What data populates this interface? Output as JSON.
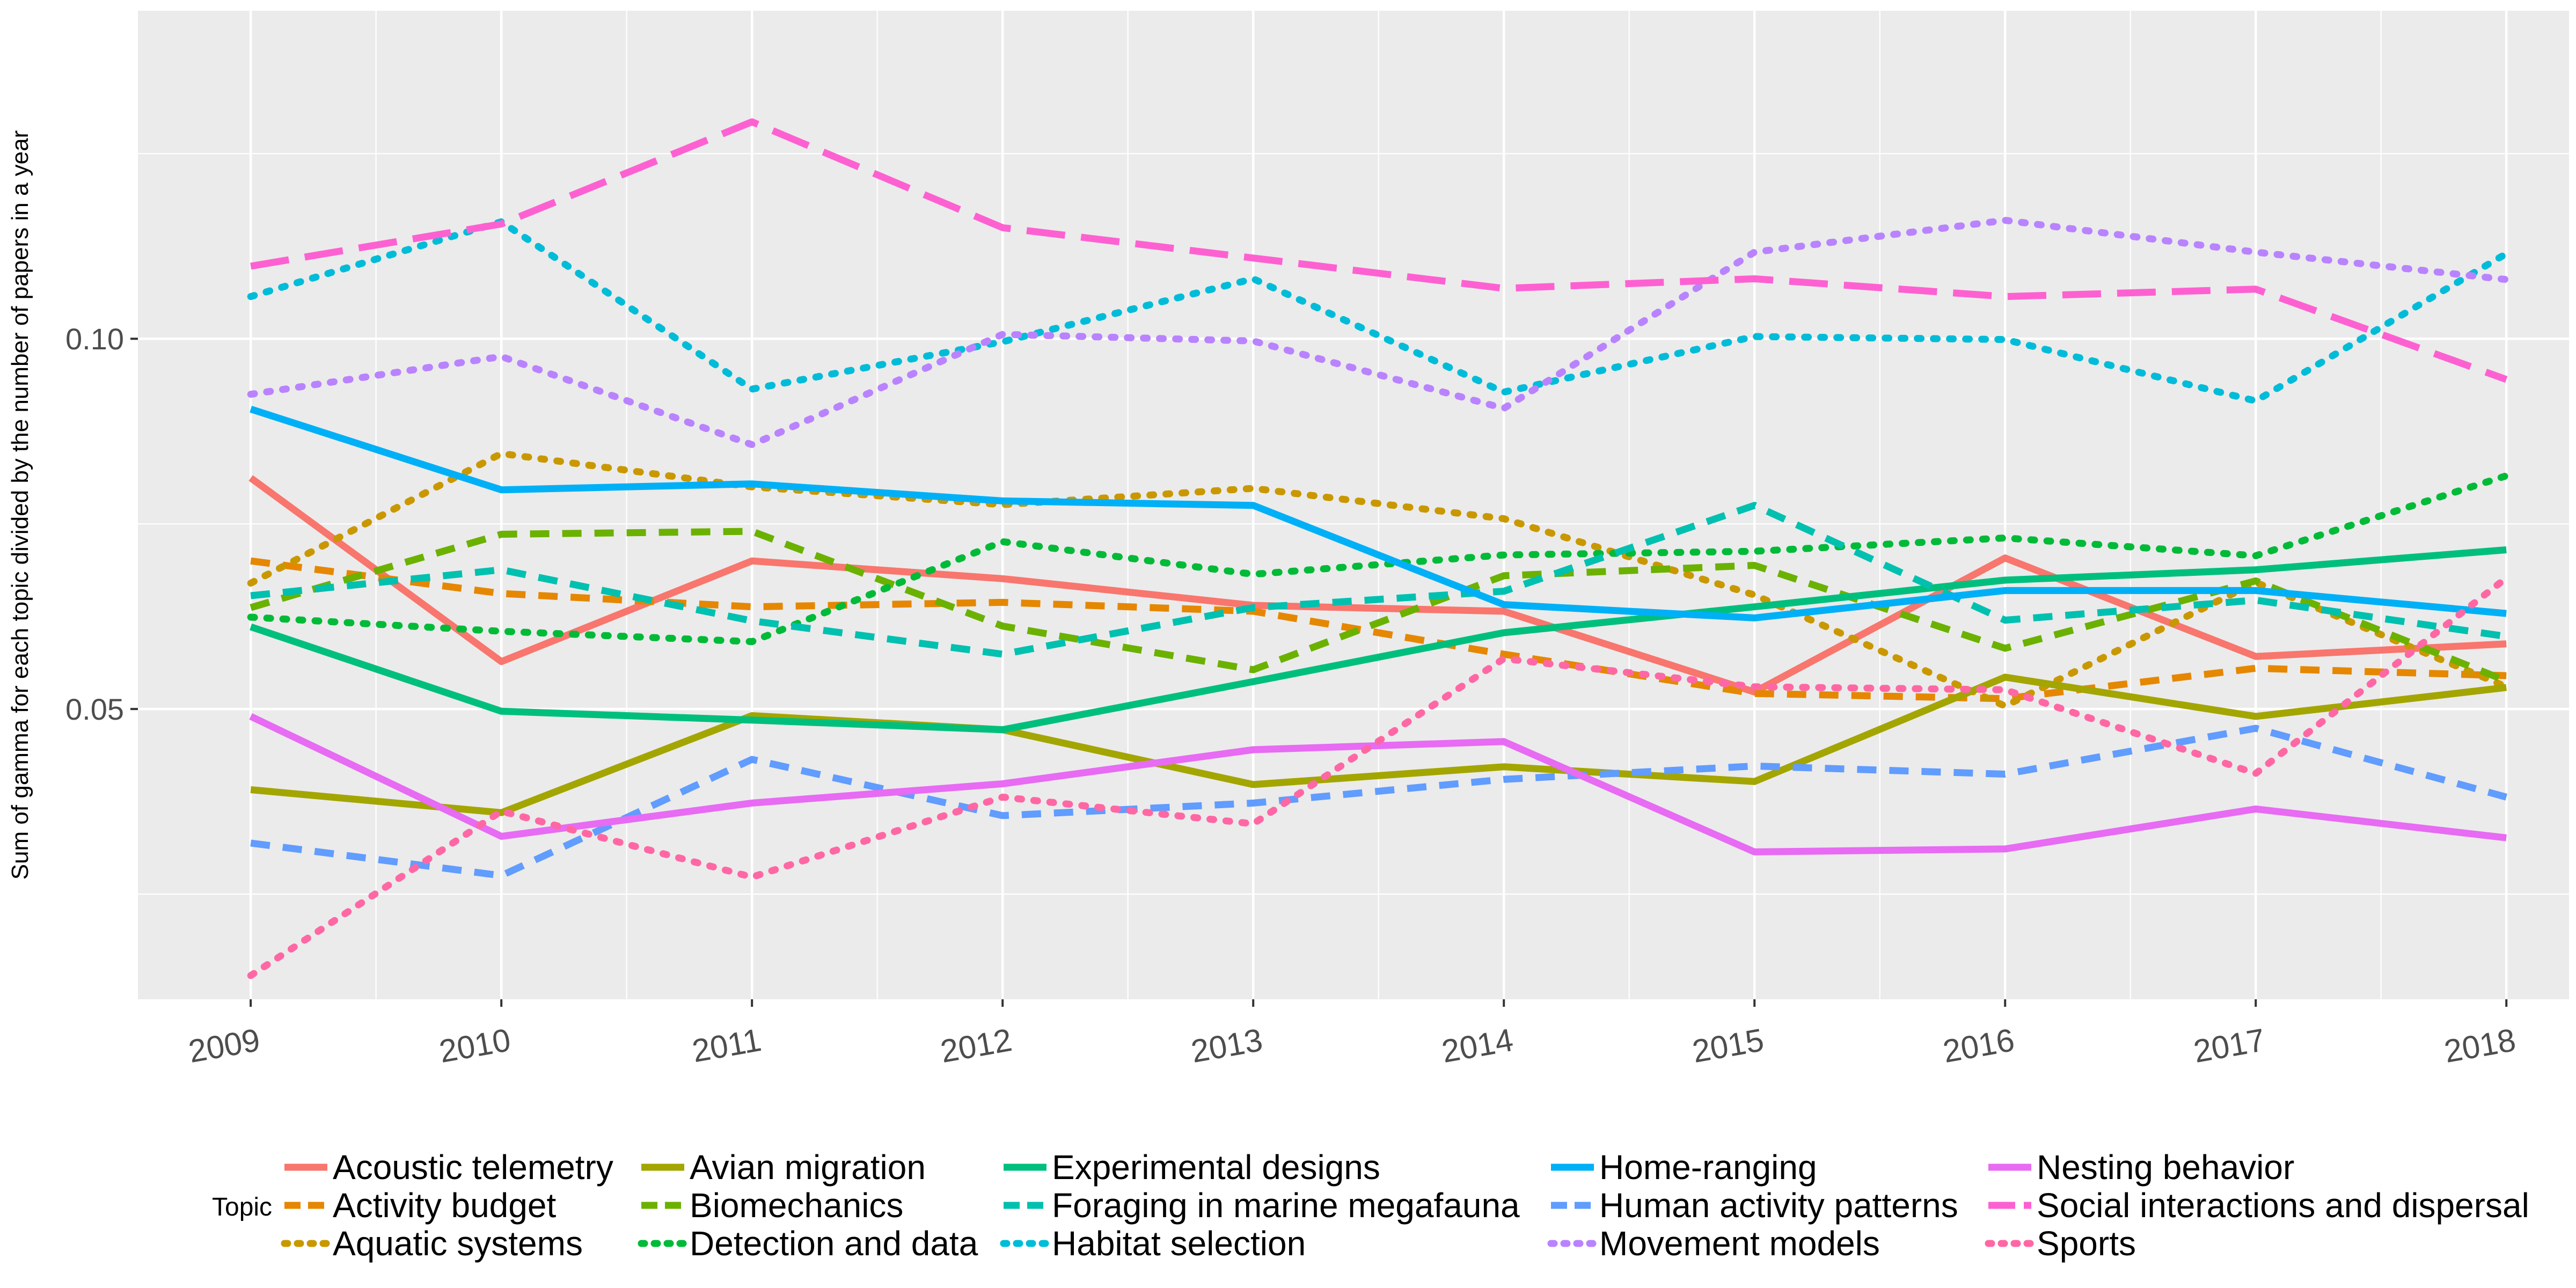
{
  "chart_data": {
    "type": "line",
    "title": "",
    "xlabel": "",
    "ylabel": "Sum of gamma for each topic divided by the number of papers in a year",
    "x": [
      2009,
      2010,
      2011,
      2012,
      2013,
      2014,
      2015,
      2016,
      2017,
      2018
    ],
    "xlim": [
      2008.55,
      2018.25
    ],
    "ylim": [
      0.0108,
      0.1443
    ],
    "y_ticks": [
      0.05,
      0.1
    ],
    "y_tick_labels": [
      "0.05",
      "0.10"
    ],
    "grid": true,
    "legend_title": "Topic",
    "legend_position": "bottom",
    "series": [
      {
        "name": "Acoustic telemetry",
        "color": "#F8766D",
        "dash": "solid",
        "values": [
          0.0812,
          0.0564,
          0.07,
          0.0676,
          0.064,
          0.0632,
          0.0523,
          0.0704,
          0.0571,
          0.0588
        ]
      },
      {
        "name": "Activity budget",
        "color": "#E58700",
        "dash": "dashed",
        "values": [
          0.07,
          0.0656,
          0.0638,
          0.0644,
          0.0632,
          0.0574,
          0.0521,
          0.0514,
          0.0555,
          0.0545
        ]
      },
      {
        "name": "Aquatic systems",
        "color": "#C99800",
        "dash": "dotted",
        "values": [
          0.067,
          0.0845,
          0.08,
          0.0776,
          0.0798,
          0.0757,
          0.0654,
          0.0504,
          0.0671,
          0.053
        ]
      },
      {
        "name": "Avian migration",
        "color": "#A3A500",
        "dash": "solid",
        "values": [
          0.0391,
          0.036,
          0.0491,
          0.0472,
          0.0398,
          0.0422,
          0.0402,
          0.0543,
          0.049,
          0.0529
        ]
      },
      {
        "name": "Biomechanics",
        "color": "#6BB100",
        "dash": "dashed",
        "values": [
          0.0637,
          0.0736,
          0.074,
          0.0612,
          0.0553,
          0.068,
          0.0694,
          0.0582,
          0.0673,
          0.0538
        ]
      },
      {
        "name": "Detection and data",
        "color": "#00BA38",
        "dash": "dotted",
        "values": [
          0.0624,
          0.0605,
          0.0591,
          0.0726,
          0.0682,
          0.0708,
          0.0713,
          0.0731,
          0.0707,
          0.0815
        ]
      },
      {
        "name": "Experimental designs",
        "color": "#00BF7D",
        "dash": "solid",
        "values": [
          0.0611,
          0.0497,
          0.0485,
          0.0472,
          0.0537,
          0.0603,
          0.0638,
          0.0674,
          0.0688,
          0.0715
        ]
      },
      {
        "name": "Foraging in marine megafauna",
        "color": "#00C0AF",
        "dash": "dashed",
        "values": [
          0.0653,
          0.0688,
          0.0619,
          0.0574,
          0.0637,
          0.0659,
          0.0775,
          0.062,
          0.0647,
          0.0598
        ]
      },
      {
        "name": "Habitat selection",
        "color": "#00BCD8",
        "dash": "dotted",
        "values": [
          0.1057,
          0.1158,
          0.0932,
          0.0996,
          0.1081,
          0.0928,
          0.1003,
          0.0999,
          0.0916,
          0.1115
        ]
      },
      {
        "name": "Home-ranging",
        "color": "#00B0F6",
        "dash": "solid",
        "values": [
          0.0905,
          0.0796,
          0.0804,
          0.0781,
          0.0775,
          0.0641,
          0.0623,
          0.066,
          0.066,
          0.0629
        ]
      },
      {
        "name": "Human activity patterns",
        "color": "#619CFF",
        "dash": "dashed",
        "values": [
          0.0319,
          0.0275,
          0.0432,
          0.0356,
          0.0373,
          0.0405,
          0.0423,
          0.0412,
          0.0474,
          0.0381
        ]
      },
      {
        "name": "Movement models",
        "color": "#B983FF",
        "dash": "dotted",
        "values": [
          0.0925,
          0.0976,
          0.0857,
          0.1006,
          0.0997,
          0.0906,
          0.1117,
          0.116,
          0.1117,
          0.108
        ]
      },
      {
        "name": "Nesting behavior",
        "color": "#E76BF3",
        "dash": "solid",
        "values": [
          0.049,
          0.0328,
          0.0373,
          0.0399,
          0.0445,
          0.0456,
          0.0307,
          0.0311,
          0.0365,
          0.0326
        ]
      },
      {
        "name": "Social interactions and dispersal",
        "color": "#FD61D1",
        "dash": "longdash",
        "values": [
          0.1098,
          0.1155,
          0.1293,
          0.115,
          0.1109,
          0.1068,
          0.1081,
          0.1057,
          0.1067,
          0.0945
        ]
      },
      {
        "name": "Sports",
        "color": "#FF67A4",
        "dash": "dotted",
        "values": [
          0.014,
          0.0362,
          0.0273,
          0.0381,
          0.0345,
          0.0568,
          0.053,
          0.0526,
          0.0413,
          0.0677
        ]
      }
    ]
  }
}
